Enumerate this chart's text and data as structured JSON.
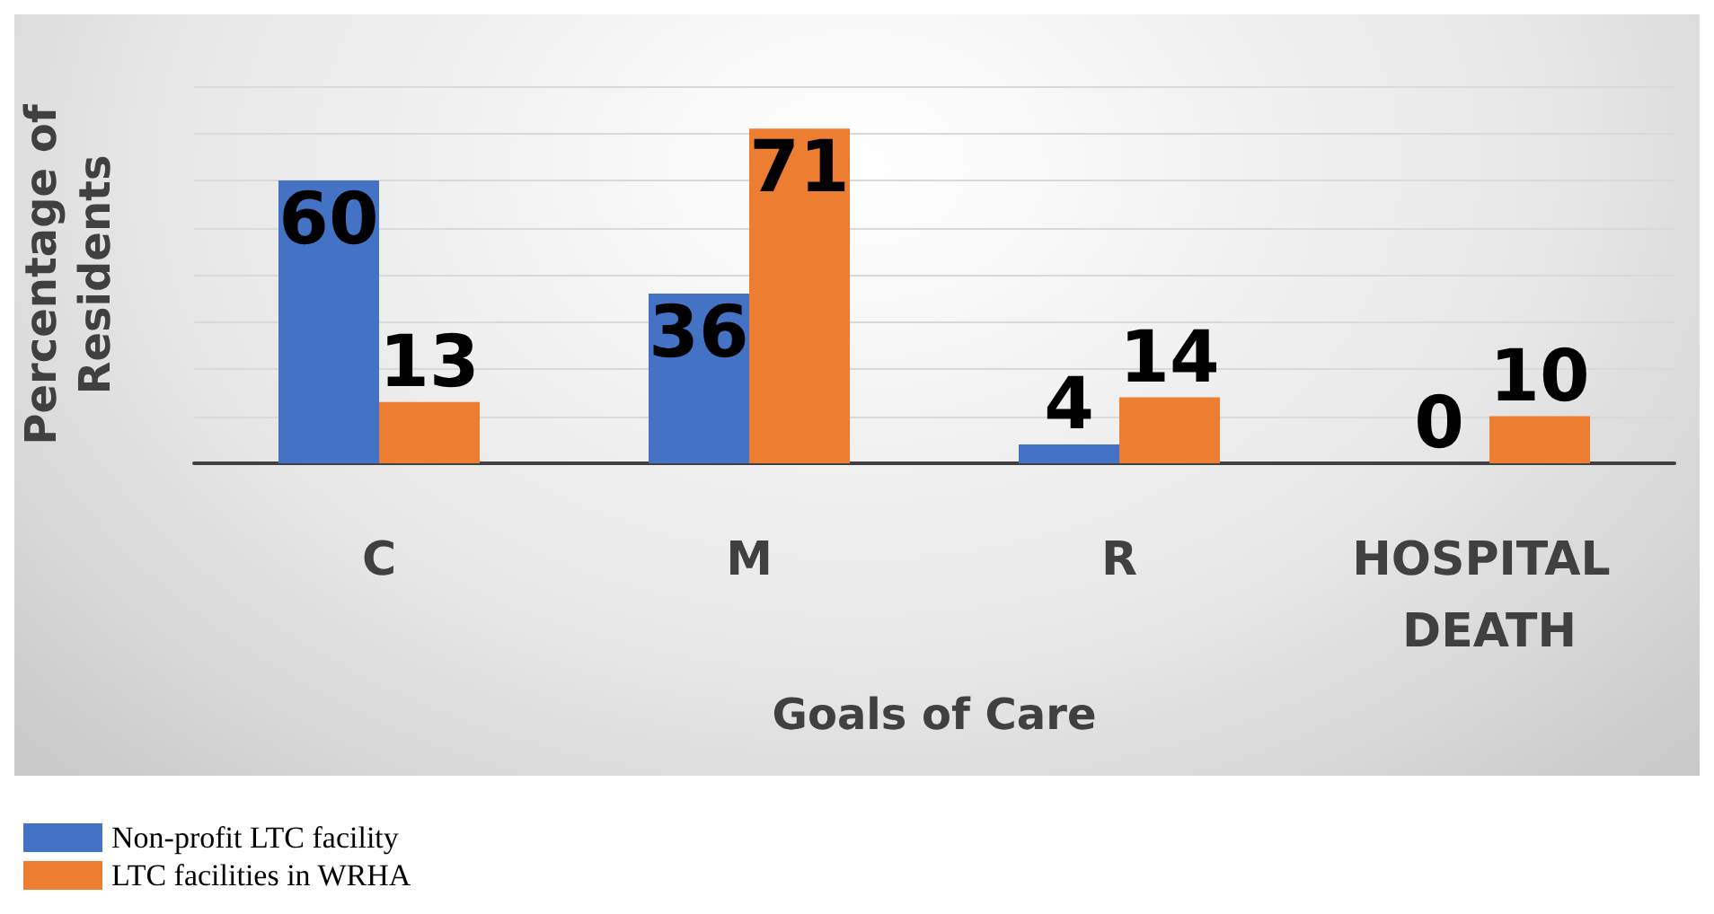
{
  "chart_data": {
    "type": "bar",
    "xlabel": "Goals of Care",
    "ylabel": "Percentage of Residents",
    "categories": [
      "C",
      "M",
      "R",
      "HOSPITAL DEATH"
    ],
    "series": [
      {
        "name": "Non-profit LTC facility",
        "color": "#4472c4",
        "values": [
          60,
          36,
          4,
          0
        ]
      },
      {
        "name": "LTC facilities in WRHA",
        "color": "#ed7d31",
        "values": [
          13,
          71,
          14,
          10
        ]
      }
    ],
    "ylim": [
      0,
      80
    ],
    "yticks": [
      {
        "value": 0,
        "label": null
      },
      {
        "value": 10,
        "label": null
      },
      {
        "value": 20,
        "label": null
      },
      {
        "value": 30,
        "label": null
      },
      {
        "value": 40,
        "label": null
      },
      {
        "value": 50,
        "label": null
      },
      {
        "value": 60,
        "label": null
      },
      {
        "value": 70,
        "label": null
      },
      {
        "value": 80,
        "label": null
      }
    ],
    "data_labels": true,
    "grid": "y",
    "legend": "bottom left"
  }
}
